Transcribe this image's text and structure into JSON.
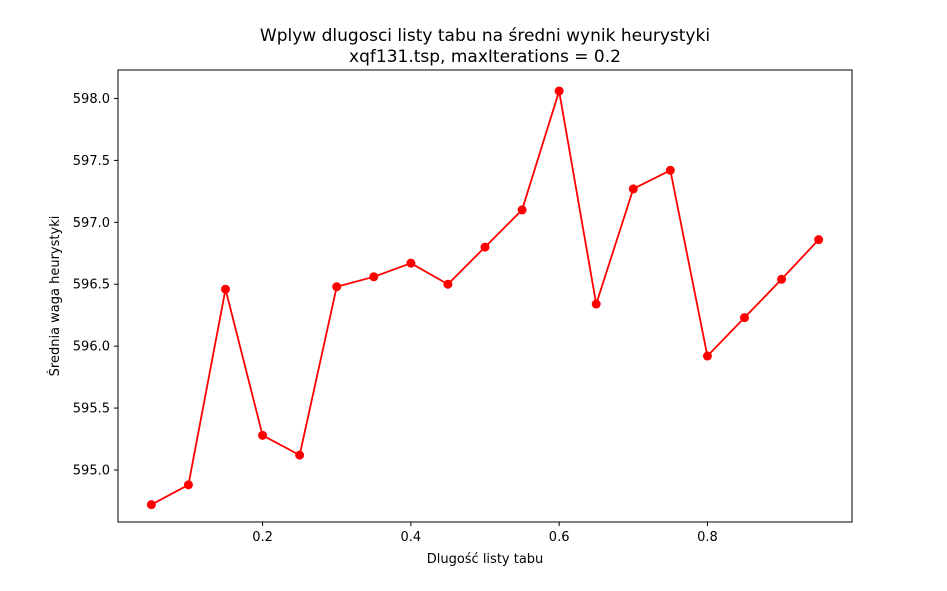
{
  "chart_data": {
    "type": "line",
    "title": "Wplyw dlugosci listy tabu na średni wynik heurystyki",
    "subtitle": "xqf131.tsp, maxIterations = 0.2",
    "xlabel": "Dlugość listy tabu",
    "ylabel": "Średnia waga heurystyki",
    "xlim": [
      0.005,
      0.995
    ],
    "ylim": [
      594.58,
      598.23
    ],
    "xticks": [
      0.2,
      0.4,
      0.6,
      0.8
    ],
    "xtick_labels": [
      "0.2",
      "0.4",
      "0.6",
      "0.8"
    ],
    "yticks": [
      595.0,
      595.5,
      596.0,
      596.5,
      597.0,
      597.5,
      598.0
    ],
    "ytick_labels": [
      "595.0",
      "595.5",
      "596.0",
      "596.5",
      "597.0",
      "597.5",
      "598.0"
    ],
    "grid": false,
    "series": [
      {
        "color": "#ff0000",
        "marker": "circle",
        "x": [
          0.05,
          0.1,
          0.15,
          0.2,
          0.25,
          0.3,
          0.35,
          0.4,
          0.45,
          0.5,
          0.55,
          0.6,
          0.65,
          0.7,
          0.75,
          0.8,
          0.85,
          0.9,
          0.95
        ],
        "y": [
          594.72,
          594.88,
          596.46,
          595.28,
          595.12,
          596.48,
          596.56,
          596.67,
          596.5,
          596.8,
          597.1,
          598.06,
          596.34,
          597.27,
          597.42,
          595.92,
          596.23,
          596.54,
          596.86
        ]
      }
    ]
  }
}
